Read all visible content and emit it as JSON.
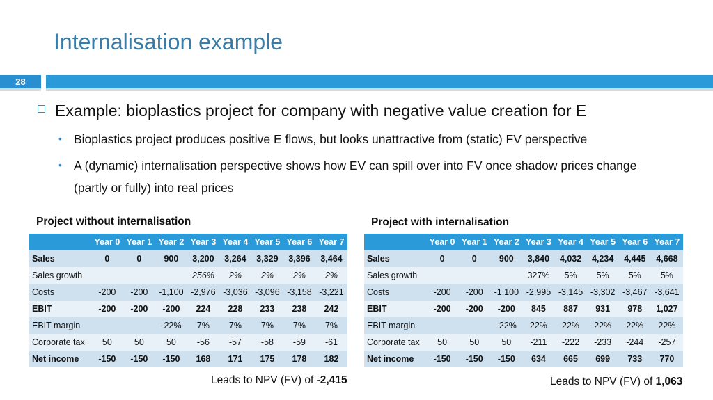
{
  "title": "Internalisation example",
  "slide_number": "28",
  "bullet_main": "Example: bioplastics project for company with negative value creation for E",
  "sub_bullets": [
    "Bioplastics project produces positive E flows, but looks unattractive from (static) FV perspective",
    "A (dynamic) internalisation perspective shows how EV can spill over into FV once shadow prices change (partly or fully) into real prices"
  ],
  "left_table": {
    "title": "Project without internalisation",
    "headers": [
      "",
      "Year 0",
      "Year 1",
      "Year 2",
      "Year 3",
      "Year 4",
      "Year 5",
      "Year 6",
      "Year 7"
    ],
    "rows": [
      {
        "label": "Sales",
        "values": [
          "0",
          "0",
          "900",
          "3,200",
          "3,264",
          "3,329",
          "3,396",
          "3,464"
        ],
        "bold": true
      },
      {
        "label": "Sales growth",
        "values": [
          "",
          "",
          "",
          "256%",
          "2%",
          "2%",
          "2%",
          "2%"
        ],
        "italic": true
      },
      {
        "label": "Costs",
        "values": [
          "-200",
          "-200",
          "-1,100",
          "-2,976",
          "-3,036",
          "-3,096",
          "-3,158",
          "-3,221"
        ]
      },
      {
        "label": "EBIT",
        "values": [
          "-200",
          "-200",
          "-200",
          "224",
          "228",
          "233",
          "238",
          "242"
        ],
        "bold": true
      },
      {
        "label": "EBIT margin",
        "values": [
          "",
          "",
          "-22%",
          "7%",
          "7%",
          "7%",
          "7%",
          "7%"
        ]
      },
      {
        "label": "Corporate tax",
        "values": [
          "50",
          "50",
          "50",
          "-56",
          "-57",
          "-58",
          "-59",
          "-61"
        ]
      },
      {
        "label": "Net income",
        "values": [
          "-150",
          "-150",
          "-150",
          "168",
          "171",
          "175",
          "178",
          "182"
        ],
        "bold": true
      }
    ],
    "npv_label": "Leads to NPV (FV) of ",
    "npv_value": "-2,415"
  },
  "right_table": {
    "title": "Project with internalisation",
    "headers": [
      "",
      "Year 0",
      "Year 1",
      "Year 2",
      "Year 3",
      "Year 4",
      "Year 5",
      "Year 6",
      "Year 7"
    ],
    "rows": [
      {
        "label": "Sales",
        "values": [
          "0",
          "0",
          "900",
          "3,840",
          "4,032",
          "4,234",
          "4,445",
          "4,668"
        ],
        "bold": true
      },
      {
        "label": "Sales growth",
        "values": [
          "",
          "",
          "",
          "327%",
          "5%",
          "5%",
          "5%",
          "5%"
        ]
      },
      {
        "label": "Costs",
        "values": [
          "-200",
          "-200",
          "-1,100",
          "-2,995",
          "-3,145",
          "-3,302",
          "-3,467",
          "-3,641"
        ]
      },
      {
        "label": "EBIT",
        "values": [
          "-200",
          "-200",
          "-200",
          "845",
          "887",
          "931",
          "978",
          "1,027"
        ],
        "bold": true
      },
      {
        "label": "EBIT margin",
        "values": [
          "",
          "",
          "-22%",
          "22%",
          "22%",
          "22%",
          "22%",
          "22%"
        ]
      },
      {
        "label": "Corporate tax",
        "values": [
          "50",
          "50",
          "50",
          "-211",
          "-222",
          "-233",
          "-244",
          "-257"
        ]
      },
      {
        "label": "Net income",
        "values": [
          "-150",
          "-150",
          "-150",
          "634",
          "665",
          "699",
          "733",
          "770"
        ],
        "bold": true
      }
    ],
    "npv_label": "Leads to NPV (FV) of ",
    "npv_value": "1,063"
  },
  "colors": {
    "accent": "#2a9ad8",
    "title": "#3a7ca5",
    "row_dark": "#cfe0ee",
    "row_light": "#e8f1f8"
  }
}
